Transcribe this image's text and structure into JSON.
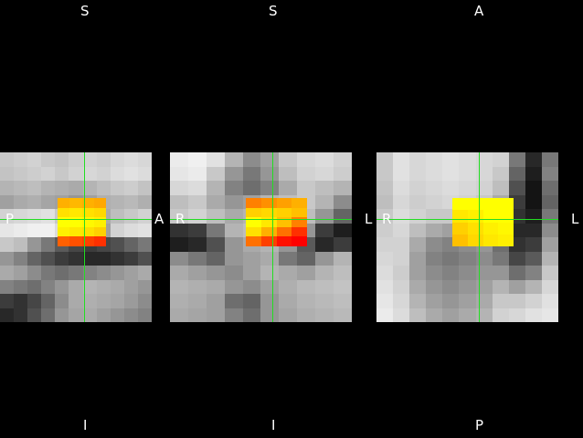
{
  "views": [
    {
      "name": "sagittal",
      "labels": {
        "top": "S",
        "bottom": "I",
        "left": "P",
        "right": "A"
      },
      "gray": [
        [
          200,
          205,
          210,
          200,
          195,
          205,
          210,
          205,
          215,
          220,
          215
        ],
        [
          195,
          200,
          205,
          210,
          200,
          210,
          215,
          210,
          220,
          225,
          220
        ],
        [
          180,
          185,
          190,
          180,
          175,
          170,
          180,
          190,
          200,
          205,
          195
        ],
        [
          160,
          170,
          175,
          165,
          160,
          150,
          160,
          175,
          180,
          185,
          175
        ],
        [
          210,
          215,
          220,
          225,
          200,
          160,
          150,
          170,
          190,
          200,
          210
        ],
        [
          230,
          235,
          240,
          240,
          220,
          170,
          150,
          160,
          210,
          220,
          225
        ],
        [
          200,
          190,
          150,
          120,
          90,
          70,
          60,
          70,
          80,
          100,
          120
        ],
        [
          150,
          130,
          100,
          80,
          60,
          50,
          40,
          40,
          50,
          60,
          80
        ],
        [
          170,
          160,
          140,
          120,
          110,
          120,
          130,
          140,
          150,
          160,
          170
        ],
        [
          130,
          120,
          110,
          130,
          150,
          170,
          180,
          175,
          170,
          160,
          150
        ],
        [
          60,
          50,
          70,
          100,
          140,
          170,
          175,
          170,
          165,
          155,
          140
        ],
        [
          40,
          50,
          80,
          110,
          150,
          165,
          170,
          160,
          150,
          140,
          130
        ]
      ],
      "heat": [
        [
          "#ffb000",
          "#ffb800",
          "#ffb000",
          "#ffa800"
        ],
        [
          "#ffe000",
          "#ffe800",
          "#ffe000",
          "#ffd800"
        ],
        [
          "#ffff00",
          "#ffff00",
          "#fff800",
          "#fff000"
        ],
        [
          "#fff000",
          "#ffe800",
          "#ffe000",
          "#ffd000"
        ],
        [
          "#ff6000",
          "#ff5000",
          "#ff4000",
          "#ff3000"
        ]
      ]
    },
    {
      "name": "coronal",
      "labels": {
        "top": "S",
        "bottom": "I",
        "left": "R",
        "right": "L"
      },
      "gray": [
        [
          235,
          240,
          225,
          180,
          140,
          160,
          200,
          215,
          220,
          210
        ],
        [
          230,
          235,
          200,
          150,
          120,
          150,
          190,
          210,
          215,
          205
        ],
        [
          215,
          220,
          180,
          130,
          110,
          130,
          170,
          200,
          190,
          180
        ],
        [
          190,
          200,
          170,
          150,
          160,
          180,
          190,
          200,
          180,
          140
        ],
        [
          200,
          210,
          190,
          170,
          180,
          200,
          210,
          190,
          150,
          100
        ],
        [
          50,
          60,
          120,
          180,
          190,
          200,
          190,
          150,
          60,
          30
        ],
        [
          30,
          40,
          80,
          150,
          170,
          180,
          150,
          90,
          40,
          60
        ],
        [
          140,
          120,
          100,
          150,
          160,
          170,
          120,
          100,
          150,
          180
        ],
        [
          170,
          160,
          150,
          140,
          160,
          180,
          170,
          160,
          180,
          190
        ],
        [
          180,
          175,
          170,
          150,
          140,
          160,
          175,
          185,
          190,
          195
        ],
        [
          175,
          170,
          160,
          110,
          100,
          150,
          170,
          180,
          185,
          190
        ],
        [
          170,
          165,
          160,
          130,
          110,
          150,
          165,
          175,
          180,
          185
        ]
      ],
      "heat": [
        [
          "#ff8000",
          "#ff9000",
          "#ffa000",
          "#ffb000"
        ],
        [
          "#ffd000",
          "#ffd800",
          "#ffd000",
          "#ffc000"
        ],
        [
          "#ffff00",
          "#ffe800",
          "#ffc000",
          "#ff8000"
        ],
        [
          "#ffe000",
          "#ffb000",
          "#ff7000",
          "#ff3000"
        ],
        [
          "#ff7000",
          "#ff4000",
          "#ff1000",
          "#ff0000"
        ]
      ]
    },
    {
      "name": "axial",
      "labels": {
        "top": "A",
        "bottom": "P",
        "left": "R",
        "right": "L"
      },
      "gray": [
        [
          200,
          225,
          215,
          220,
          225,
          220,
          215,
          210,
          120,
          40,
          120
        ],
        [
          200,
          225,
          215,
          220,
          225,
          220,
          215,
          200,
          100,
          30,
          130
        ],
        [
          195,
          220,
          210,
          215,
          220,
          215,
          210,
          190,
          80,
          20,
          110
        ],
        [
          190,
          215,
          205,
          210,
          215,
          210,
          200,
          170,
          60,
          20,
          100
        ],
        [
          200,
          220,
          210,
          200,
          200,
          200,
          190,
          150,
          50,
          30,
          120
        ],
        [
          205,
          215,
          190,
          170,
          160,
          170,
          170,
          120,
          40,
          40,
          140
        ],
        [
          210,
          210,
          170,
          140,
          130,
          140,
          150,
          110,
          50,
          60,
          160
        ],
        [
          215,
          210,
          160,
          130,
          120,
          130,
          140,
          120,
          70,
          90,
          180
        ],
        [
          220,
          205,
          160,
          140,
          130,
          140,
          150,
          150,
          110,
          130,
          200
        ],
        [
          225,
          210,
          170,
          150,
          140,
          150,
          160,
          180,
          160,
          180,
          215
        ],
        [
          230,
          215,
          180,
          160,
          150,
          160,
          170,
          200,
          200,
          210,
          225
        ],
        [
          235,
          220,
          190,
          170,
          160,
          170,
          180,
          210,
          215,
          225,
          230
        ]
      ],
      "heat": [
        [
          "#ffff00",
          "#ffff00",
          "#ffff00",
          "#ffff00"
        ],
        [
          "#ffe800",
          "#fff000",
          "#ffff00",
          "#ffff00"
        ],
        [
          "#ffd000",
          "#ffe000",
          "#fff000",
          "#fff800"
        ],
        [
          "#ffc000",
          "#ffd800",
          "#ffe800",
          "#fff000"
        ]
      ]
    }
  ]
}
